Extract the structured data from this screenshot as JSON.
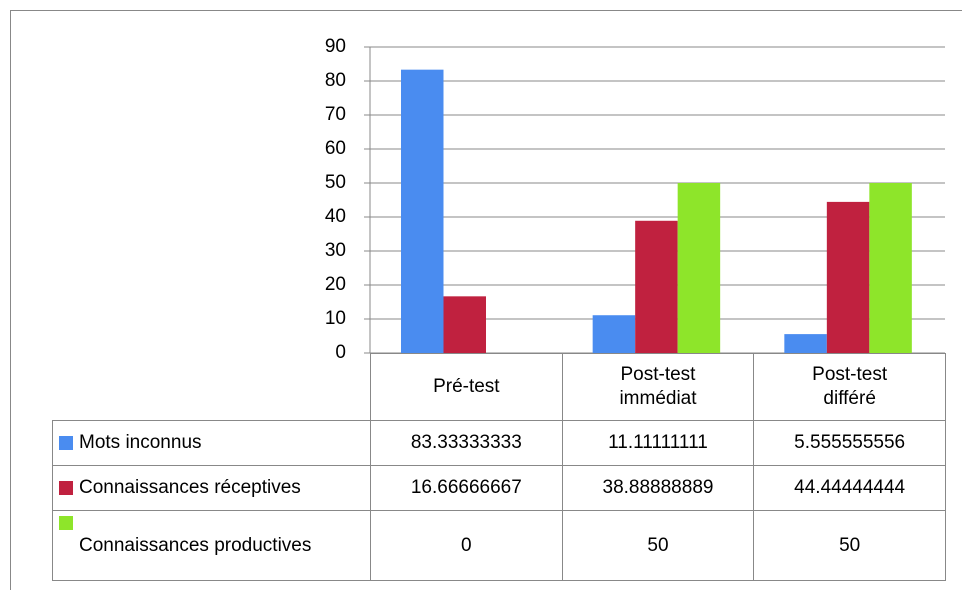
{
  "chart_data": {
    "type": "bar",
    "categories": [
      "Pré-test",
      "Post-test immédiat",
      "Post-test différé"
    ],
    "series": [
      {
        "name": "Mots inconnus",
        "color": "#4a8cf0",
        "values": [
          83.33333333,
          11.11111111,
          5.555555556
        ]
      },
      {
        "name": "Connaissances réceptives",
        "color": "#c0213f",
        "values": [
          16.66666667,
          38.88888889,
          44.44444444
        ]
      },
      {
        "name": "Connaissances productives",
        "color": "#8ee52a",
        "values": [
          0,
          50,
          50
        ]
      }
    ],
    "ylim": [
      0,
      90
    ],
    "yticks": [
      0,
      10,
      20,
      30,
      40,
      50,
      60,
      70,
      80,
      90
    ],
    "grid": true
  }
}
